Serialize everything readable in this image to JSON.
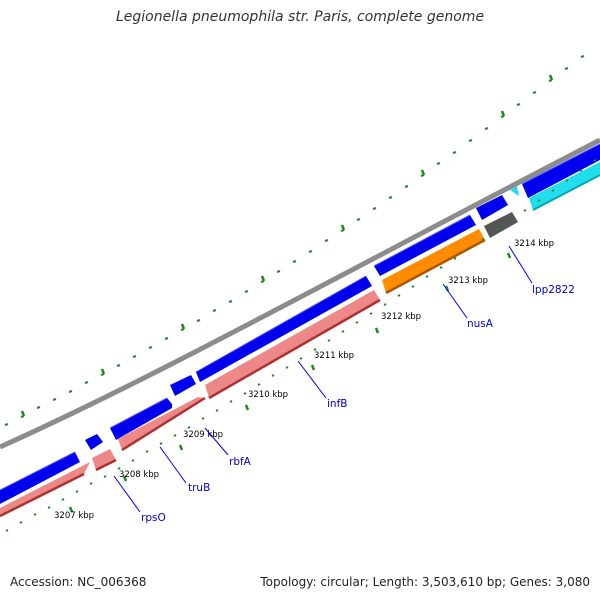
{
  "title": "Legionella pneumophila str. Paris, complete genome",
  "footer": {
    "accession": "Accession: NC_006368",
    "summary": "Topology: circular; Length: 3,503,610 bp; Genes: 3,080"
  },
  "colors": {
    "backbone": "#8c8c8c",
    "forward_gene": "#0000ee",
    "reverse_gene": "#ee8888",
    "reverse_gene_alt": "#ff8c00",
    "unknown_gene": "#555555",
    "highlight_gene": "#22ddee",
    "ticks": "#228822",
    "label_text": "#0000cc"
  },
  "scale_labels": [
    "3207 kbp",
    "3208 kbp",
    "3209 kbp",
    "3210 kbp",
    "3211 kbp",
    "3212 kbp",
    "3213 kbp",
    "3214 kbp"
  ],
  "gene_labels": [
    "rpsO",
    "truB",
    "rbfA",
    "infB",
    "nusA",
    "lpp2822"
  ],
  "icons": {
    "gene_forward": "arrow-right",
    "gene_reverse": "arrow-left"
  }
}
